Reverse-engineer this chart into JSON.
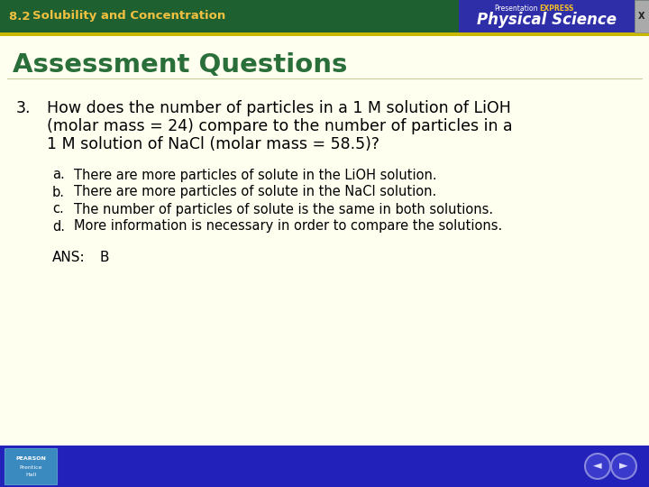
{
  "header_bg_color": "#1e6030",
  "header_text_color": "#f0c040",
  "blue_box_color": "#2e2ea8",
  "x_button_color": "#bbbbbb",
  "main_bg_color": "#fffff0",
  "section_title": "Assessment Questions",
  "section_title_color": "#2a6e3a",
  "question_number": "3.",
  "question_text_line1": "How does the number of particles in a 1 M solution of LiOH",
  "question_text_line2": "(molar mass = 24) compare to the number of particles in a",
  "question_text_line3": "1 M solution of NaCl (molar mass = 58.5)?",
  "choices": [
    {
      "label": "a.",
      "text": "There are more particles of solute in the LiOH solution."
    },
    {
      "label": "b.",
      "text": "There are more particles of solute in the NaCl solution."
    },
    {
      "label": "c.",
      "text": "The number of particles of solute is the same in both solutions."
    },
    {
      "label": "d.",
      "text": "More information is necessary in order to compare the solutions."
    }
  ],
  "ans_label": "ANS:",
  "ans_value": "B",
  "footer_bg_color": "#2222bb",
  "question_color": "#000000",
  "choice_color": "#000000",
  "yellow_line_color": "#c8b800",
  "presentation_color": "#ffffff",
  "express_color": "#f5c020"
}
